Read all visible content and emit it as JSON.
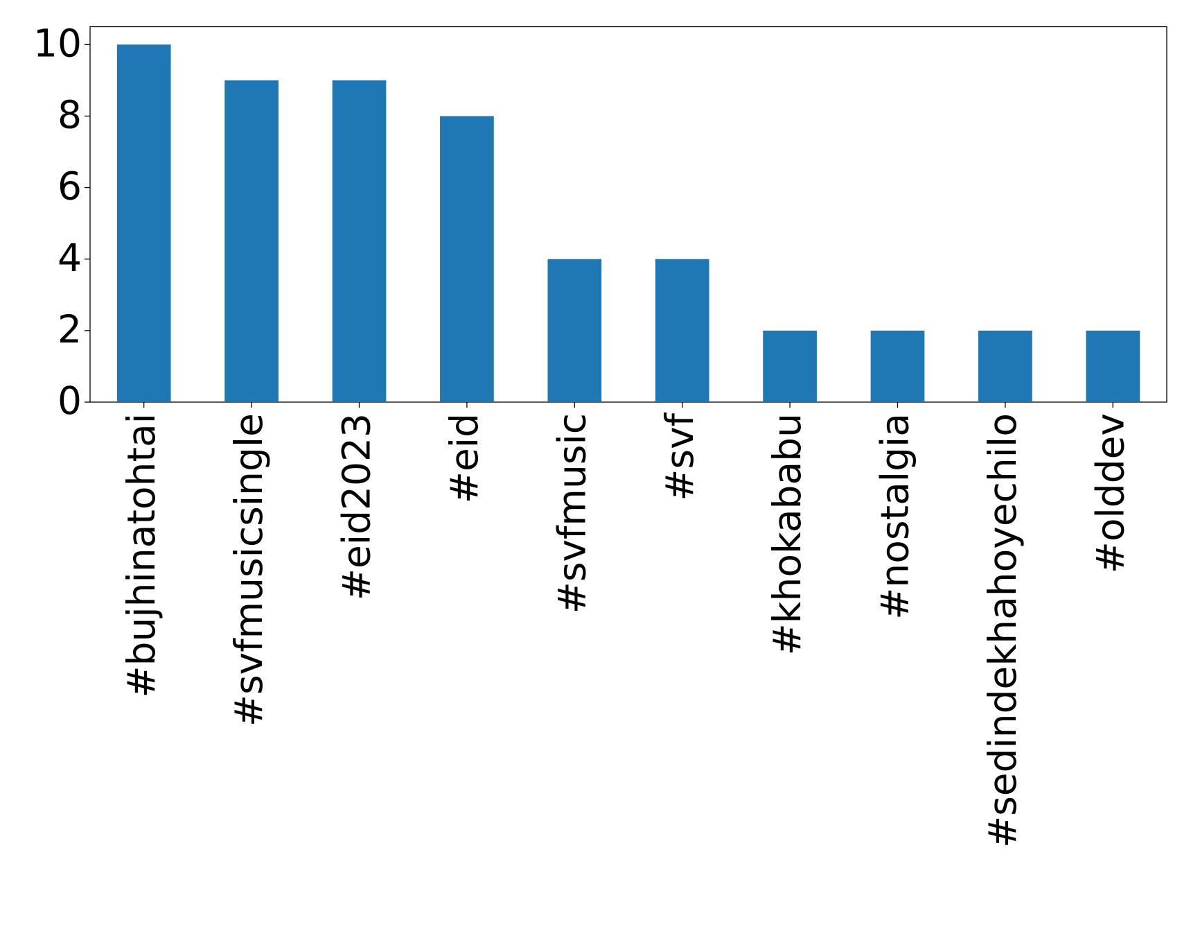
{
  "chart_data": {
    "type": "bar",
    "categories": [
      "#bujhinatohtai",
      "#svfmusicsingle",
      "#eid2023",
      "#eid",
      "#svfmusic",
      "#svf",
      "#khokababu",
      "#nostalgia",
      "#sedindekhahoyechilo",
      "#olddev"
    ],
    "values": [
      10,
      9,
      9,
      8,
      4,
      4,
      2,
      2,
      2,
      2
    ],
    "color": "#1f77b4",
    "ylim": [
      0,
      10.5
    ],
    "yticks": [
      0,
      2,
      4,
      6,
      8,
      10
    ],
    "grid": false
  }
}
